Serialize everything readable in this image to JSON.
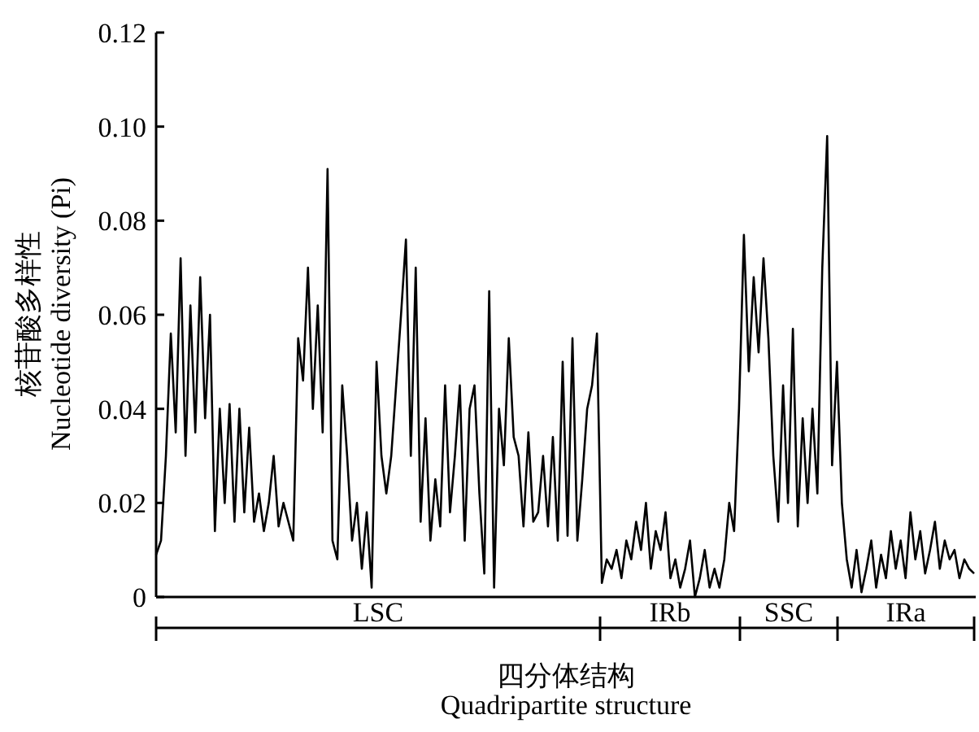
{
  "chart_data": {
    "type": "line",
    "ylabel": "核苷酸多样性\nNucleotide diversity (Pi)",
    "xlabel": "四分体结构\nQuadripartite structure",
    "categories": [
      null,
      null,
      null,
      null,
      null,
      null,
      null,
      null,
      null,
      null,
      null,
      null,
      null,
      null,
      null,
      null,
      null,
      null,
      null,
      null,
      null,
      null,
      null,
      null,
      null,
      null,
      null,
      null,
      null,
      null,
      null,
      null,
      null,
      null,
      null,
      null,
      null,
      null,
      null,
      null,
      null,
      null,
      null,
      null,
      null,
      null,
      null,
      null,
      null,
      null,
      null,
      null,
      null,
      null,
      null,
      null,
      null,
      null,
      null,
      null,
      null,
      null,
      null,
      null,
      null,
      null,
      null,
      null,
      null,
      null,
      null,
      null,
      null,
      null,
      null,
      null,
      null,
      null,
      null,
      null,
      null,
      null,
      null,
      null,
      null,
      null,
      null,
      null,
      null,
      null,
      null,
      null,
      null,
      null,
      null,
      null,
      null,
      null,
      null,
      null,
      null,
      null,
      null,
      null,
      null,
      null,
      null,
      null,
      null,
      null,
      null,
      null,
      null,
      null,
      null,
      null,
      null,
      null,
      null,
      null,
      null,
      null,
      null,
      null,
      null,
      null,
      null,
      null,
      null,
      null,
      null,
      null,
      null,
      null,
      null,
      null,
      null,
      null,
      null,
      null,
      null,
      null,
      null,
      null,
      null,
      null,
      null,
      null,
      null,
      null,
      null,
      null,
      null,
      null,
      null,
      null,
      null,
      null,
      null,
      null,
      null,
      null,
      null,
      null,
      null,
      null,
      null,
      null
    ],
    "series": [
      {
        "color": "#000000",
        "values": [
          0.009,
          0.012,
          0.03,
          0.056,
          0.035,
          0.072,
          0.03,
          0.062,
          0.035,
          0.068,
          0.038,
          0.06,
          0.014,
          0.04,
          0.02,
          0.041,
          0.016,
          0.04,
          0.018,
          0.036,
          0.016,
          0.022,
          0.014,
          0.02,
          0.03,
          0.015,
          0.02,
          0.016,
          0.012,
          0.055,
          0.046,
          0.07,
          0.04,
          0.062,
          0.035,
          0.091,
          0.012,
          0.008,
          0.045,
          0.03,
          0.012,
          0.02,
          0.006,
          0.018,
          0.002,
          0.05,
          0.03,
          0.022,
          0.03,
          0.045,
          0.06,
          0.076,
          0.03,
          0.07,
          0.016,
          0.038,
          0.012,
          0.025,
          0.015,
          0.045,
          0.018,
          0.03,
          0.045,
          0.012,
          0.04,
          0.045,
          0.022,
          0.005,
          0.065,
          0.002,
          0.04,
          0.028,
          0.055,
          0.034,
          0.03,
          0.015,
          0.035,
          0.016,
          0.018,
          0.03,
          0.015,
          0.034,
          0.012,
          0.05,
          0.013,
          0.055,
          0.012,
          0.025,
          0.04,
          0.045,
          0.056,
          0.003,
          0.008,
          0.006,
          0.01,
          0.004,
          0.012,
          0.008,
          0.016,
          0.01,
          0.02,
          0.006,
          0.014,
          0.01,
          0.018,
          0.004,
          0.008,
          0.002,
          0.006,
          0.012,
          0,
          0.004,
          0.01,
          0.002,
          0.006,
          0.002,
          0.008,
          0.02,
          0.014,
          0.04,
          0.077,
          0.048,
          0.068,
          0.052,
          0.072,
          0.055,
          0.03,
          0.016,
          0.045,
          0.02,
          0.057,
          0.015,
          0.038,
          0.02,
          0.04,
          0.022,
          0.07,
          0.098,
          0.028,
          0.05,
          0.02,
          0.008,
          0.002,
          0.01,
          0.001,
          0.006,
          0.012,
          0.002,
          0.009,
          0.004,
          0.014,
          0.006,
          0.012,
          0.004,
          0.018,
          0.008,
          0.014,
          0.005,
          0.01,
          0.016,
          0.006,
          0.012,
          0.008,
          0.01,
          0.004,
          0.008,
          0.006,
          0.005
        ]
      }
    ],
    "ylim": [
      0,
      0.12
    ],
    "yticks": [
      {
        "value": 0,
        "label": "0"
      },
      {
        "value": 0.02,
        "label": "0.02"
      },
      {
        "value": 0.04,
        "label": "0.04"
      },
      {
        "value": 0.06,
        "label": "0.06"
      },
      {
        "value": 0.08,
        "label": "0.08"
      },
      {
        "value": 0.1,
        "label": "0.10"
      },
      {
        "value": 0.12,
        "label": "0.12"
      }
    ],
    "annotations": [
      "LSC",
      "IRb",
      "SSC",
      "IRa"
    ],
    "tick_labels": "y",
    "grid": false,
    "marker": "none",
    "line_style": "solid"
  }
}
